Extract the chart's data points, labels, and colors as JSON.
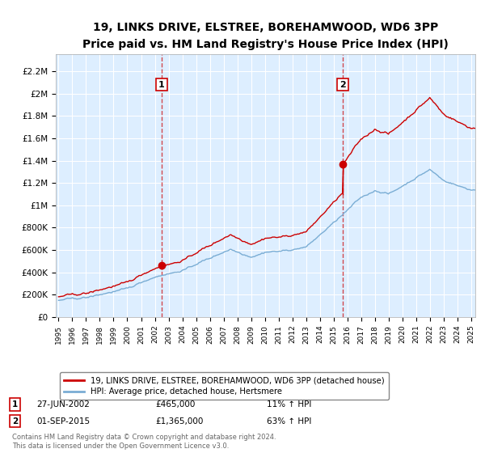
{
  "title": "19, LINKS DRIVE, ELSTREE, BOREHAMWOOD, WD6 3PP",
  "subtitle": "Price paid vs. HM Land Registry's House Price Index (HPI)",
  "ylabel_ticks": [
    "£0",
    "£200K",
    "£400K",
    "£600K",
    "£800K",
    "£1M",
    "£1.2M",
    "£1.4M",
    "£1.6M",
    "£1.8M",
    "£2M",
    "£2.2M"
  ],
  "ytick_values": [
    0,
    200000,
    400000,
    600000,
    800000,
    1000000,
    1200000,
    1400000,
    1600000,
    1800000,
    2000000,
    2200000
  ],
  "ylim": [
    0,
    2350000
  ],
  "xlim_start": 1994.8,
  "xlim_end": 2025.3,
  "bg_color": "#ddeeff",
  "grid_color": "#ffffff",
  "line_color_red": "#cc0000",
  "line_color_blue": "#7aadd4",
  "sale1_x": 2002.49,
  "sale1_y": 465000,
  "sale2_x": 2015.67,
  "sale2_y": 1365000,
  "sale1_label": "1",
  "sale2_label": "2",
  "legend_red": "19, LINKS DRIVE, ELSTREE, BOREHAMWOOD, WD6 3PP (detached house)",
  "legend_blue": "HPI: Average price, detached house, Hertsmere",
  "note1_num": "1",
  "note1_date": "27-JUN-2002",
  "note1_price": "£465,000",
  "note1_change": "11% ↑ HPI",
  "note2_num": "2",
  "note2_date": "01-SEP-2015",
  "note2_price": "£1,365,000",
  "note2_change": "63% ↑ HPI",
  "footer": "Contains HM Land Registry data © Crown copyright and database right 2024.\nThis data is licensed under the Open Government Licence v3.0."
}
